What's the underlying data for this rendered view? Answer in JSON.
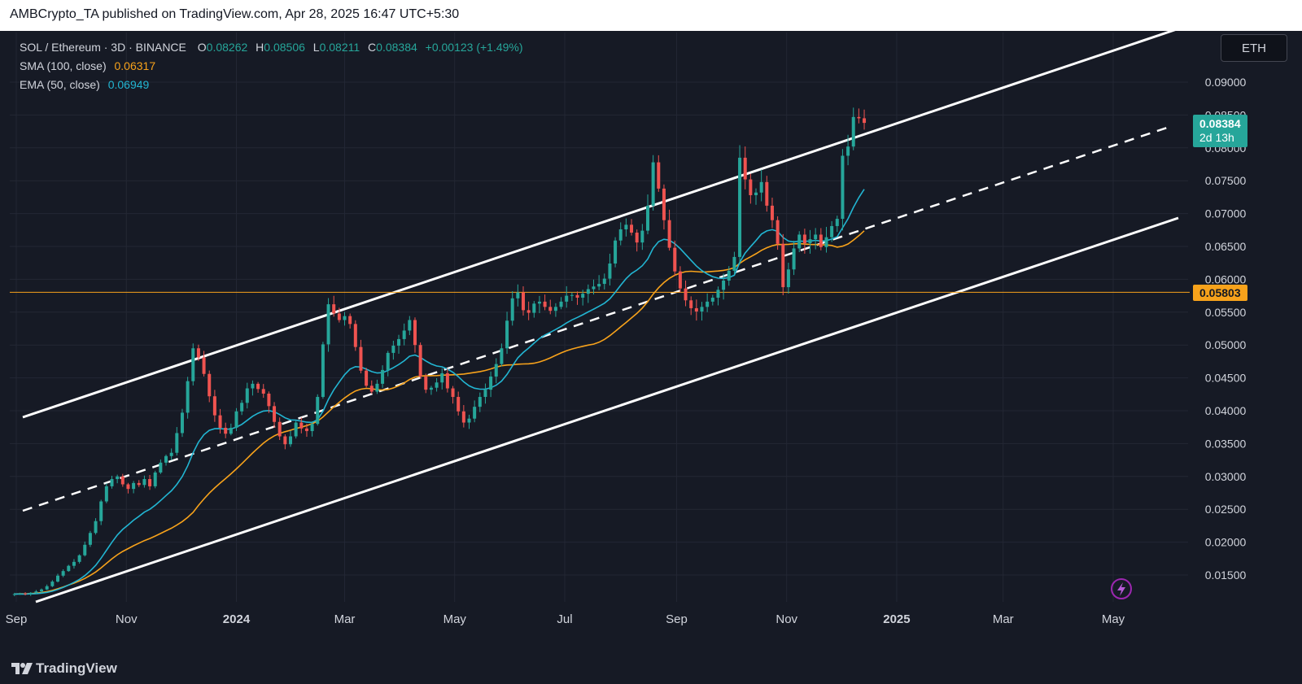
{
  "header": {
    "published_line": "AMBCrypto_TA published on TradingView.com, Apr 28, 2025 16:47 UTC+5:30"
  },
  "legend": {
    "symbol": "SOL / Ethereum · 3D · BINANCE",
    "o_label": "O",
    "o_value": "0.08262",
    "h_label": "H",
    "h_value": "0.08506",
    "l_label": "L",
    "l_value": "0.08211",
    "c_label": "C",
    "c_value": "0.08384",
    "change": "+0.00123 (+1.49%)",
    "sma_label": "SMA (100, close)",
    "sma_value": "0.06317",
    "ema_label": "EMA (50, close)",
    "ema_value": "0.06949"
  },
  "currency_button": "ETH",
  "last_price_tag": {
    "price": "0.08384",
    "countdown": "2d 13h"
  },
  "level_tag": "0.05803",
  "footer": {
    "brand": "TradingView"
  },
  "colors": {
    "background": "#161a25",
    "up": "#26a69a",
    "down": "#ef5350",
    "ema": "#22b5d2",
    "sma": "#f7a21b",
    "level": "#f7a21b",
    "channel": "#ffffff"
  },
  "chart_data": {
    "type": "candlestick",
    "title": "SOL / Ethereum · 3D · BINANCE",
    "x_tick_labels": [
      "Sep",
      "Nov",
      "2024",
      "Mar",
      "May",
      "Jul",
      "Sep",
      "Nov",
      "2025",
      "Mar",
      "May"
    ],
    "y_tick_labels": [
      "0.09000",
      "0.08500",
      "0.08000",
      "0.07500",
      "0.07000",
      "0.06500",
      "0.06000",
      "0.05500",
      "0.05000",
      "0.04500",
      "0.04000",
      "0.03500",
      "0.03000",
      "0.02500",
      "0.02000",
      "0.01500"
    ],
    "y_range": [
      0.011,
      0.094
    ],
    "horizontal_level": 0.05803,
    "close_series": {
      "start": "2023-08-31",
      "interval_days": 3,
      "closes": [
        0.0121,
        0.0122,
        0.0121,
        0.0123,
        0.0125,
        0.0128,
        0.0133,
        0.014,
        0.0149,
        0.0156,
        0.0164,
        0.017,
        0.018,
        0.0196,
        0.0214,
        0.0232,
        0.0262,
        0.0285,
        0.0296,
        0.03,
        0.0288,
        0.0281,
        0.029,
        0.0287,
        0.0296,
        0.0285,
        0.0306,
        0.0321,
        0.0331,
        0.0336,
        0.0366,
        0.0397,
        0.0445,
        0.0495,
        0.0481,
        0.0456,
        0.0422,
        0.0393,
        0.0374,
        0.0365,
        0.0374,
        0.0399,
        0.0412,
        0.0434,
        0.0441,
        0.0433,
        0.0426,
        0.0407,
        0.0383,
        0.0361,
        0.0349,
        0.0361,
        0.0382,
        0.0373,
        0.0369,
        0.038,
        0.0421,
        0.0501,
        0.0562,
        0.0548,
        0.0538,
        0.0544,
        0.0532,
        0.0497,
        0.0461,
        0.0438,
        0.0429,
        0.0441,
        0.0462,
        0.0488,
        0.0499,
        0.0509,
        0.0522,
        0.0538,
        0.05,
        0.0452,
        0.0432,
        0.0435,
        0.0443,
        0.0457,
        0.0434,
        0.0421,
        0.0399,
        0.0382,
        0.0388,
        0.0406,
        0.0421,
        0.0432,
        0.0452,
        0.0471,
        0.0495,
        0.0537,
        0.0571,
        0.058,
        0.0553,
        0.0549,
        0.0563,
        0.0566,
        0.0558,
        0.0552,
        0.0558,
        0.0566,
        0.0575,
        0.0576,
        0.0572,
        0.0578,
        0.0585,
        0.0589,
        0.0593,
        0.0601,
        0.0624,
        0.0659,
        0.0676,
        0.0683,
        0.0671,
        0.0656,
        0.0674,
        0.0712,
        0.0778,
        0.0738,
        0.069,
        0.0648,
        0.0612,
        0.0586,
        0.0568,
        0.0556,
        0.0551,
        0.0558,
        0.0566,
        0.0572,
        0.0584,
        0.0598,
        0.0613,
        0.0634,
        0.0785,
        0.0752,
        0.0728,
        0.0732,
        0.0748,
        0.0712,
        0.069,
        0.0654,
        0.0588,
        0.0615,
        0.0647,
        0.0668,
        0.0655,
        0.0661,
        0.0668,
        0.0649,
        0.0664,
        0.0681,
        0.0692,
        0.0788,
        0.0802,
        0.0847,
        0.0845,
        0.0838
      ]
    },
    "series": [
      {
        "name": "SMA (100, close)",
        "last_value": 0.06317
      },
      {
        "name": "EMA (50, close)",
        "last_value": 0.06949
      }
    ]
  }
}
